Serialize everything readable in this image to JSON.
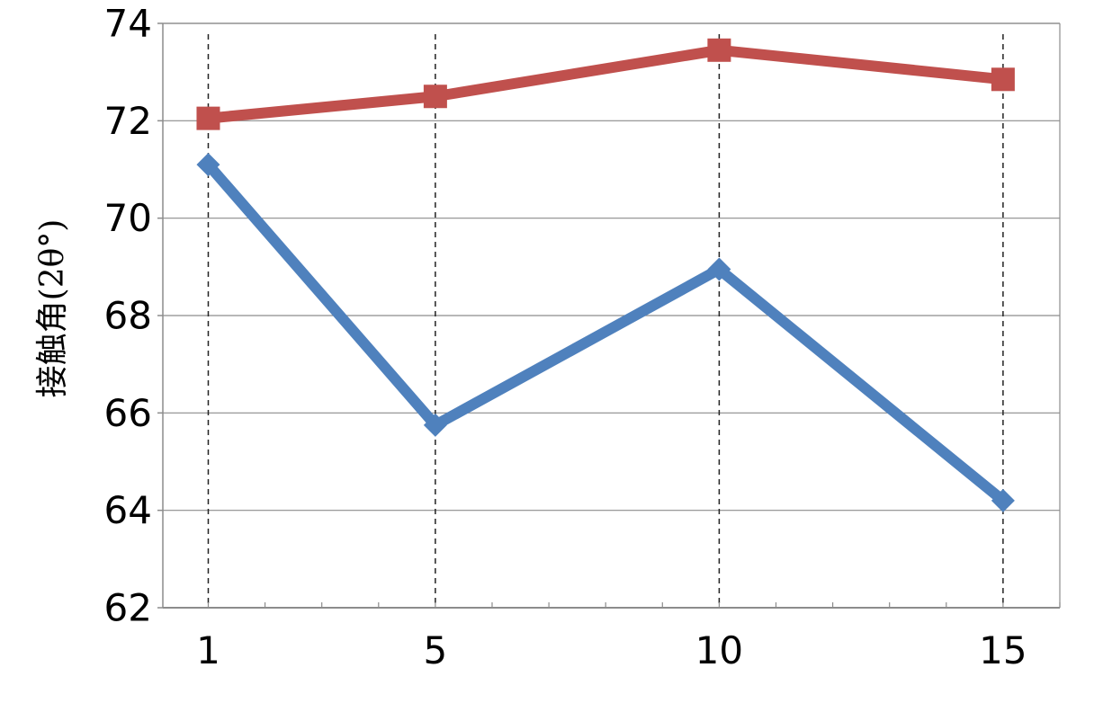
{
  "chart_data": {
    "type": "line",
    "title": "",
    "xlabel": "",
    "ylabel": "接触角(2θ°)",
    "x": [
      1,
      5,
      10,
      15
    ],
    "x_tick_labels": [
      "1",
      "5",
      "10",
      "15"
    ],
    "xlim": [
      0.2,
      16
    ],
    "ylim": [
      62,
      74
    ],
    "y_ticks": [
      62,
      64,
      66,
      68,
      70,
      72,
      74
    ],
    "y_tick_labels": [
      "62",
      "64",
      "66",
      "68",
      "70",
      "72",
      "74"
    ],
    "grid": "horizontal major gridlines, dashed vertical lines at each data x",
    "legend": "none",
    "series": [
      {
        "marker": "square",
        "color": "#c0504d",
        "values": [
          72.05,
          72.5,
          73.45,
          72.85
        ]
      },
      {
        "marker": "diamond",
        "color": "#4f81bd",
        "values": [
          71.1,
          65.75,
          68.95,
          64.2
        ]
      }
    ]
  }
}
